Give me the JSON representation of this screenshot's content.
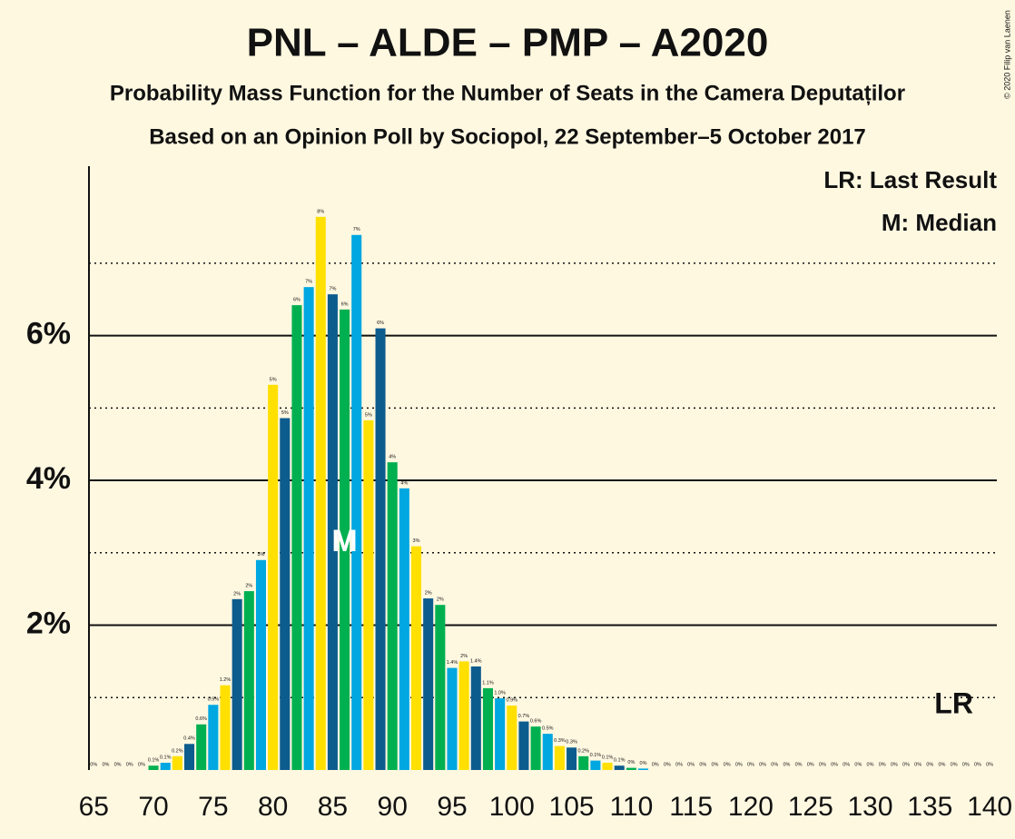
{
  "chart_data": {
    "type": "bar",
    "title": "PNL – ALDE – PMP – A2020",
    "subtitle": "Probability Mass Function for the Number of Seats in the Camera Deputaților",
    "subtitle2": "Based on an Opinion Poll by Sociopol, 22 September–5 October 2017",
    "copyright": "© 2020 Filip van Laenen",
    "legend_lr": "LR: Last Result",
    "legend_m": "M: Median",
    "median": {
      "label": "M",
      "x": 86
    },
    "last_result": {
      "label": "LR",
      "x": 137
    },
    "palette": [
      "#0d5c8e",
      "#00b050",
      "#00a7e1",
      "#ffe000"
    ],
    "x": [
      65,
      66,
      67,
      68,
      69,
      70,
      71,
      72,
      73,
      74,
      75,
      76,
      77,
      78,
      79,
      80,
      81,
      82,
      83,
      84,
      85,
      86,
      87,
      88,
      89,
      90,
      91,
      92,
      93,
      94,
      95,
      96,
      97,
      98,
      99,
      100,
      101,
      102,
      103,
      104,
      105,
      106,
      107,
      108,
      109,
      110,
      111,
      112,
      113,
      114,
      115,
      116,
      117,
      118,
      119,
      120,
      121,
      122,
      123,
      124,
      125,
      126,
      127,
      128,
      129,
      130,
      131,
      132,
      133,
      134,
      135,
      136,
      137,
      138,
      139,
      140
    ],
    "values": [
      0,
      0,
      0,
      0,
      0,
      0.06,
      0.1,
      0.19,
      0.36,
      0.63,
      0.9,
      1.17,
      2.36,
      2.47,
      2.9,
      5.32,
      4.86,
      6.42,
      6.67,
      7.64,
      6.57,
      6.36,
      7.39,
      4.83,
      6.1,
      4.25,
      3.89,
      3.09,
      2.37,
      2.28,
      1.41,
      1.5,
      1.43,
      1.13,
      0.99,
      0.89,
      0.67,
      0.6,
      0.5,
      0.33,
      0.31,
      0.19,
      0.13,
      0.1,
      0.06,
      0.03,
      0.02,
      0,
      0,
      0,
      0,
      0,
      0,
      0,
      0,
      0,
      0,
      0,
      0,
      0,
      0,
      0,
      0,
      0,
      0,
      0,
      0,
      0,
      0,
      0,
      0,
      0,
      0,
      0,
      0,
      0
    ],
    "value_labels": [
      "0%",
      "0%",
      "0%",
      "0%",
      "0%",
      "0.1%",
      "0.1%",
      "0.2%",
      "0.4%",
      "0.6%",
      "0.9%",
      "1.2%",
      "2%",
      "2%",
      "3%",
      "5%",
      "5%",
      "6%",
      "7%",
      "8%",
      "7%",
      "6%",
      "7%",
      "5%",
      "6%",
      "4%",
      "4%",
      "3%",
      "2%",
      "2%",
      "1.4%",
      "2%",
      "1.4%",
      "1.1%",
      "1.0%",
      "0.9%",
      "0.7%",
      "0.6%",
      "0.5%",
      "0.3%",
      "0.3%",
      "0.2%",
      "0.1%",
      "0.1%",
      "0.1%",
      "0%",
      "0%",
      "0%",
      "0%",
      "0%",
      "0%",
      "0%",
      "0%",
      "0%",
      "0%",
      "0%",
      "0%",
      "0%",
      "0%",
      "0%",
      "0%",
      "0%",
      "0%",
      "0%",
      "0%",
      "0%",
      "0%",
      "0%",
      "0%",
      "0%",
      "0%",
      "0%",
      "0%",
      "0%",
      "0%",
      "0%"
    ],
    "xlim": [
      64.6,
      140.6
    ],
    "xticks": [
      65,
      70,
      75,
      80,
      85,
      90,
      95,
      100,
      105,
      110,
      115,
      120,
      125,
      130,
      135,
      140
    ],
    "ylim": [
      0,
      8.34
    ],
    "yticks": [
      {
        "value": 2,
        "label": "2%"
      },
      {
        "value": 4,
        "label": "4%"
      },
      {
        "value": 6,
        "label": "6%"
      }
    ],
    "minor_yticks": [
      1,
      3,
      5,
      7
    ],
    "grid": true
  }
}
